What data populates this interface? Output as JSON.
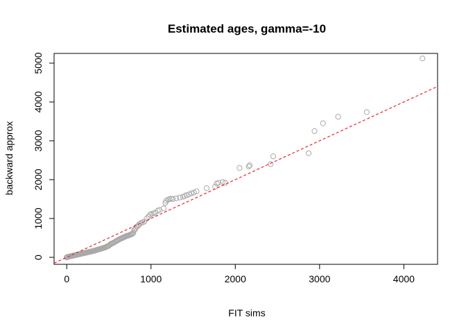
{
  "chart_data": {
    "type": "scatter",
    "title": "Estimated ages, gamma=-10",
    "xlabel": "FIT sims",
    "ylabel": "backward approx",
    "xlim": [
      -150,
      4400
    ],
    "ylim": [
      -180,
      5250
    ],
    "x_ticks": [
      0,
      1000,
      2000,
      3000,
      4000
    ],
    "y_ticks": [
      0,
      1000,
      2000,
      3000,
      4000,
      5000
    ],
    "grid": false,
    "reference_line": {
      "intercept": 0,
      "slope": 1,
      "color": "#e8232b",
      "style": "dashed"
    },
    "point_color": "#a8a8a8",
    "series": [
      {
        "points": [
          [
            0,
            0
          ],
          [
            5,
            5
          ],
          [
            10,
            8
          ],
          [
            15,
            12
          ],
          [
            20,
            15
          ],
          [
            30,
            20
          ],
          [
            40,
            25
          ],
          [
            50,
            30
          ],
          [
            60,
            35
          ],
          [
            70,
            40
          ],
          [
            80,
            45
          ],
          [
            90,
            50
          ],
          [
            100,
            55
          ],
          [
            110,
            60
          ],
          [
            120,
            65
          ],
          [
            130,
            70
          ],
          [
            140,
            75
          ],
          [
            150,
            80
          ],
          [
            160,
            85
          ],
          [
            170,
            90
          ],
          [
            180,
            95
          ],
          [
            190,
            100
          ],
          [
            200,
            105
          ],
          [
            210,
            110
          ],
          [
            220,
            115
          ],
          [
            230,
            120
          ],
          [
            240,
            125
          ],
          [
            250,
            130
          ],
          [
            260,
            135
          ],
          [
            270,
            140
          ],
          [
            280,
            145
          ],
          [
            290,
            150
          ],
          [
            300,
            155
          ],
          [
            310,
            160
          ],
          [
            320,
            165
          ],
          [
            330,
            170
          ],
          [
            340,
            180
          ],
          [
            350,
            185
          ],
          [
            360,
            190
          ],
          [
            370,
            200
          ],
          [
            380,
            205
          ],
          [
            390,
            210
          ],
          [
            400,
            220
          ],
          [
            410,
            225
          ],
          [
            420,
            230
          ],
          [
            430,
            240
          ],
          [
            440,
            245
          ],
          [
            450,
            250
          ],
          [
            460,
            260
          ],
          [
            470,
            270
          ],
          [
            480,
            280
          ],
          [
            490,
            290
          ],
          [
            500,
            300
          ],
          [
            510,
            320
          ],
          [
            520,
            340
          ],
          [
            530,
            350
          ],
          [
            540,
            360
          ],
          [
            550,
            370
          ],
          [
            560,
            380
          ],
          [
            570,
            395
          ],
          [
            580,
            410
          ],
          [
            590,
            420
          ],
          [
            600,
            435
          ],
          [
            610,
            445
          ],
          [
            620,
            460
          ],
          [
            630,
            470
          ],
          [
            640,
            480
          ],
          [
            650,
            490
          ],
          [
            660,
            500
          ],
          [
            670,
            510
          ],
          [
            680,
            520
          ],
          [
            690,
            530
          ],
          [
            700,
            540
          ],
          [
            710,
            550
          ],
          [
            720,
            555
          ],
          [
            730,
            560
          ],
          [
            740,
            570
          ],
          [
            750,
            580
          ],
          [
            760,
            590
          ],
          [
            770,
            595
          ],
          [
            780,
            610
          ],
          [
            790,
            630
          ],
          [
            800,
            700
          ],
          [
            810,
            720
          ],
          [
            820,
            760
          ],
          [
            830,
            790
          ],
          [
            850,
            820
          ],
          [
            860,
            850
          ],
          [
            880,
            880
          ],
          [
            900,
            900
          ],
          [
            920,
            920
          ],
          [
            950,
            1000
          ],
          [
            970,
            1050
          ],
          [
            990,
            1100
          ],
          [
            1010,
            1120
          ],
          [
            1030,
            1130
          ],
          [
            1050,
            1150
          ],
          [
            1080,
            1200
          ],
          [
            1100,
            1220
          ],
          [
            1150,
            1260
          ],
          [
            1170,
            1400
          ],
          [
            1180,
            1450
          ],
          [
            1200,
            1480
          ],
          [
            1220,
            1500
          ],
          [
            1240,
            1510
          ],
          [
            1260,
            1500
          ],
          [
            1300,
            1520
          ],
          [
            1340,
            1540
          ],
          [
            1380,
            1560
          ],
          [
            1400,
            1580
          ],
          [
            1420,
            1600
          ],
          [
            1450,
            1620
          ],
          [
            1480,
            1650
          ],
          [
            1510,
            1670
          ],
          [
            1540,
            1700
          ],
          [
            1660,
            1780
          ],
          [
            1760,
            1820
          ],
          [
            1780,
            1900
          ],
          [
            1800,
            1920
          ],
          [
            1850,
            1940
          ],
          [
            1880,
            1920
          ],
          [
            2050,
            2300
          ],
          [
            2160,
            2340
          ],
          [
            2170,
            2370
          ],
          [
            2420,
            2400
          ],
          [
            2450,
            2600
          ],
          [
            2870,
            2680
          ],
          [
            2940,
            3250
          ],
          [
            3040,
            3450
          ],
          [
            3220,
            3620
          ],
          [
            3560,
            3740
          ],
          [
            4220,
            5120
          ]
        ]
      }
    ]
  }
}
